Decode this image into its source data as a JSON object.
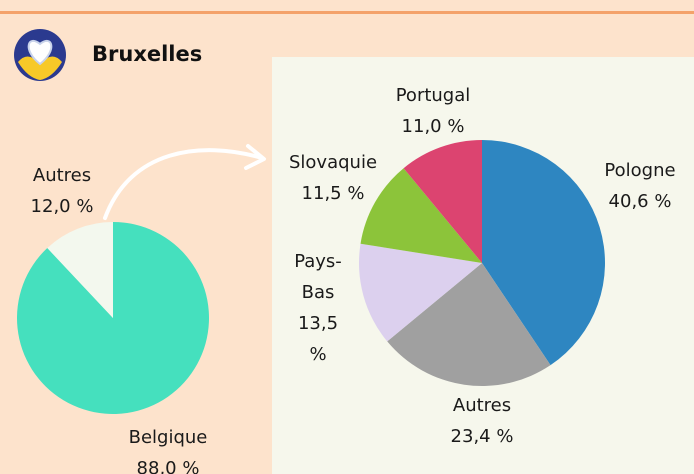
{
  "title": "Bruxelles",
  "chart_data": [
    {
      "type": "pie",
      "categories": [
        "Belgique",
        "Autres"
      ],
      "values": [
        88.0,
        12.0
      ],
      "value_labels": [
        "88,0 %",
        "12,0 %"
      ],
      "colors": [
        "#45e0be",
        "#f3f8ee"
      ]
    },
    {
      "type": "pie",
      "categories": [
        "Pologne",
        "Autres",
        "Pays-Bas",
        "Slovaquie",
        "Portugal"
      ],
      "values": [
        40.6,
        23.4,
        13.5,
        11.5,
        11.0
      ],
      "value_labels": [
        "40,6 %",
        "23,4 %",
        "13,5 %",
        "11,5 %",
        "11,0 %"
      ],
      "colors": [
        "#2e86c1",
        "#a0a0a0",
        "#dcd0ee",
        "#8cc43a",
        "#dc4470"
      ]
    }
  ]
}
